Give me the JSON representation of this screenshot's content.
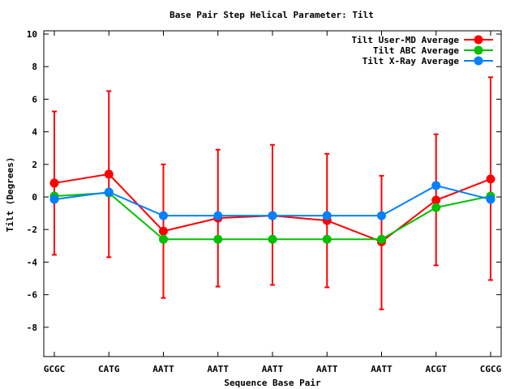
{
  "chart_data": {
    "type": "line",
    "title": "Base Pair Step Helical Parameter: Tilt",
    "xlabel": "Sequence Base Pair",
    "ylabel": "Tilt (Degrees)",
    "categories": [
      "GCGC",
      "CATG",
      "AATT",
      "AATT",
      "AATT",
      "AATT",
      "AATT",
      "ACGT",
      "CGCG"
    ],
    "ylim": [
      -9.8,
      10.2
    ],
    "yticks": [
      -8,
      -6,
      -4,
      -2,
      0,
      2,
      4,
      6,
      8,
      10
    ],
    "legend_position": "top-right",
    "series": [
      {
        "name": "Tilt User-MD Average",
        "color": "#ff0000",
        "values": [
          0.85,
          1.4,
          -2.1,
          -1.3,
          -1.15,
          -1.45,
          -2.75,
          -0.2,
          1.1
        ],
        "err_high": [
          5.25,
          6.5,
          2.0,
          2.9,
          3.2,
          2.65,
          1.3,
          3.85,
          7.35
        ],
        "err_low": [
          -3.55,
          -3.7,
          -6.2,
          -5.5,
          -5.4,
          -5.55,
          -6.9,
          -4.2,
          -5.1
        ]
      },
      {
        "name": "Tilt ABC Average",
        "color": "#00c000",
        "values": [
          0.05,
          0.25,
          -2.6,
          -2.6,
          -2.6,
          -2.6,
          -2.6,
          -0.65,
          0.05
        ]
      },
      {
        "name": "Tilt X-Ray Average",
        "color": "#0080ff",
        "values": [
          -0.15,
          0.3,
          -1.15,
          -1.15,
          -1.15,
          -1.15,
          -1.15,
          0.7,
          -0.15
        ]
      }
    ]
  }
}
